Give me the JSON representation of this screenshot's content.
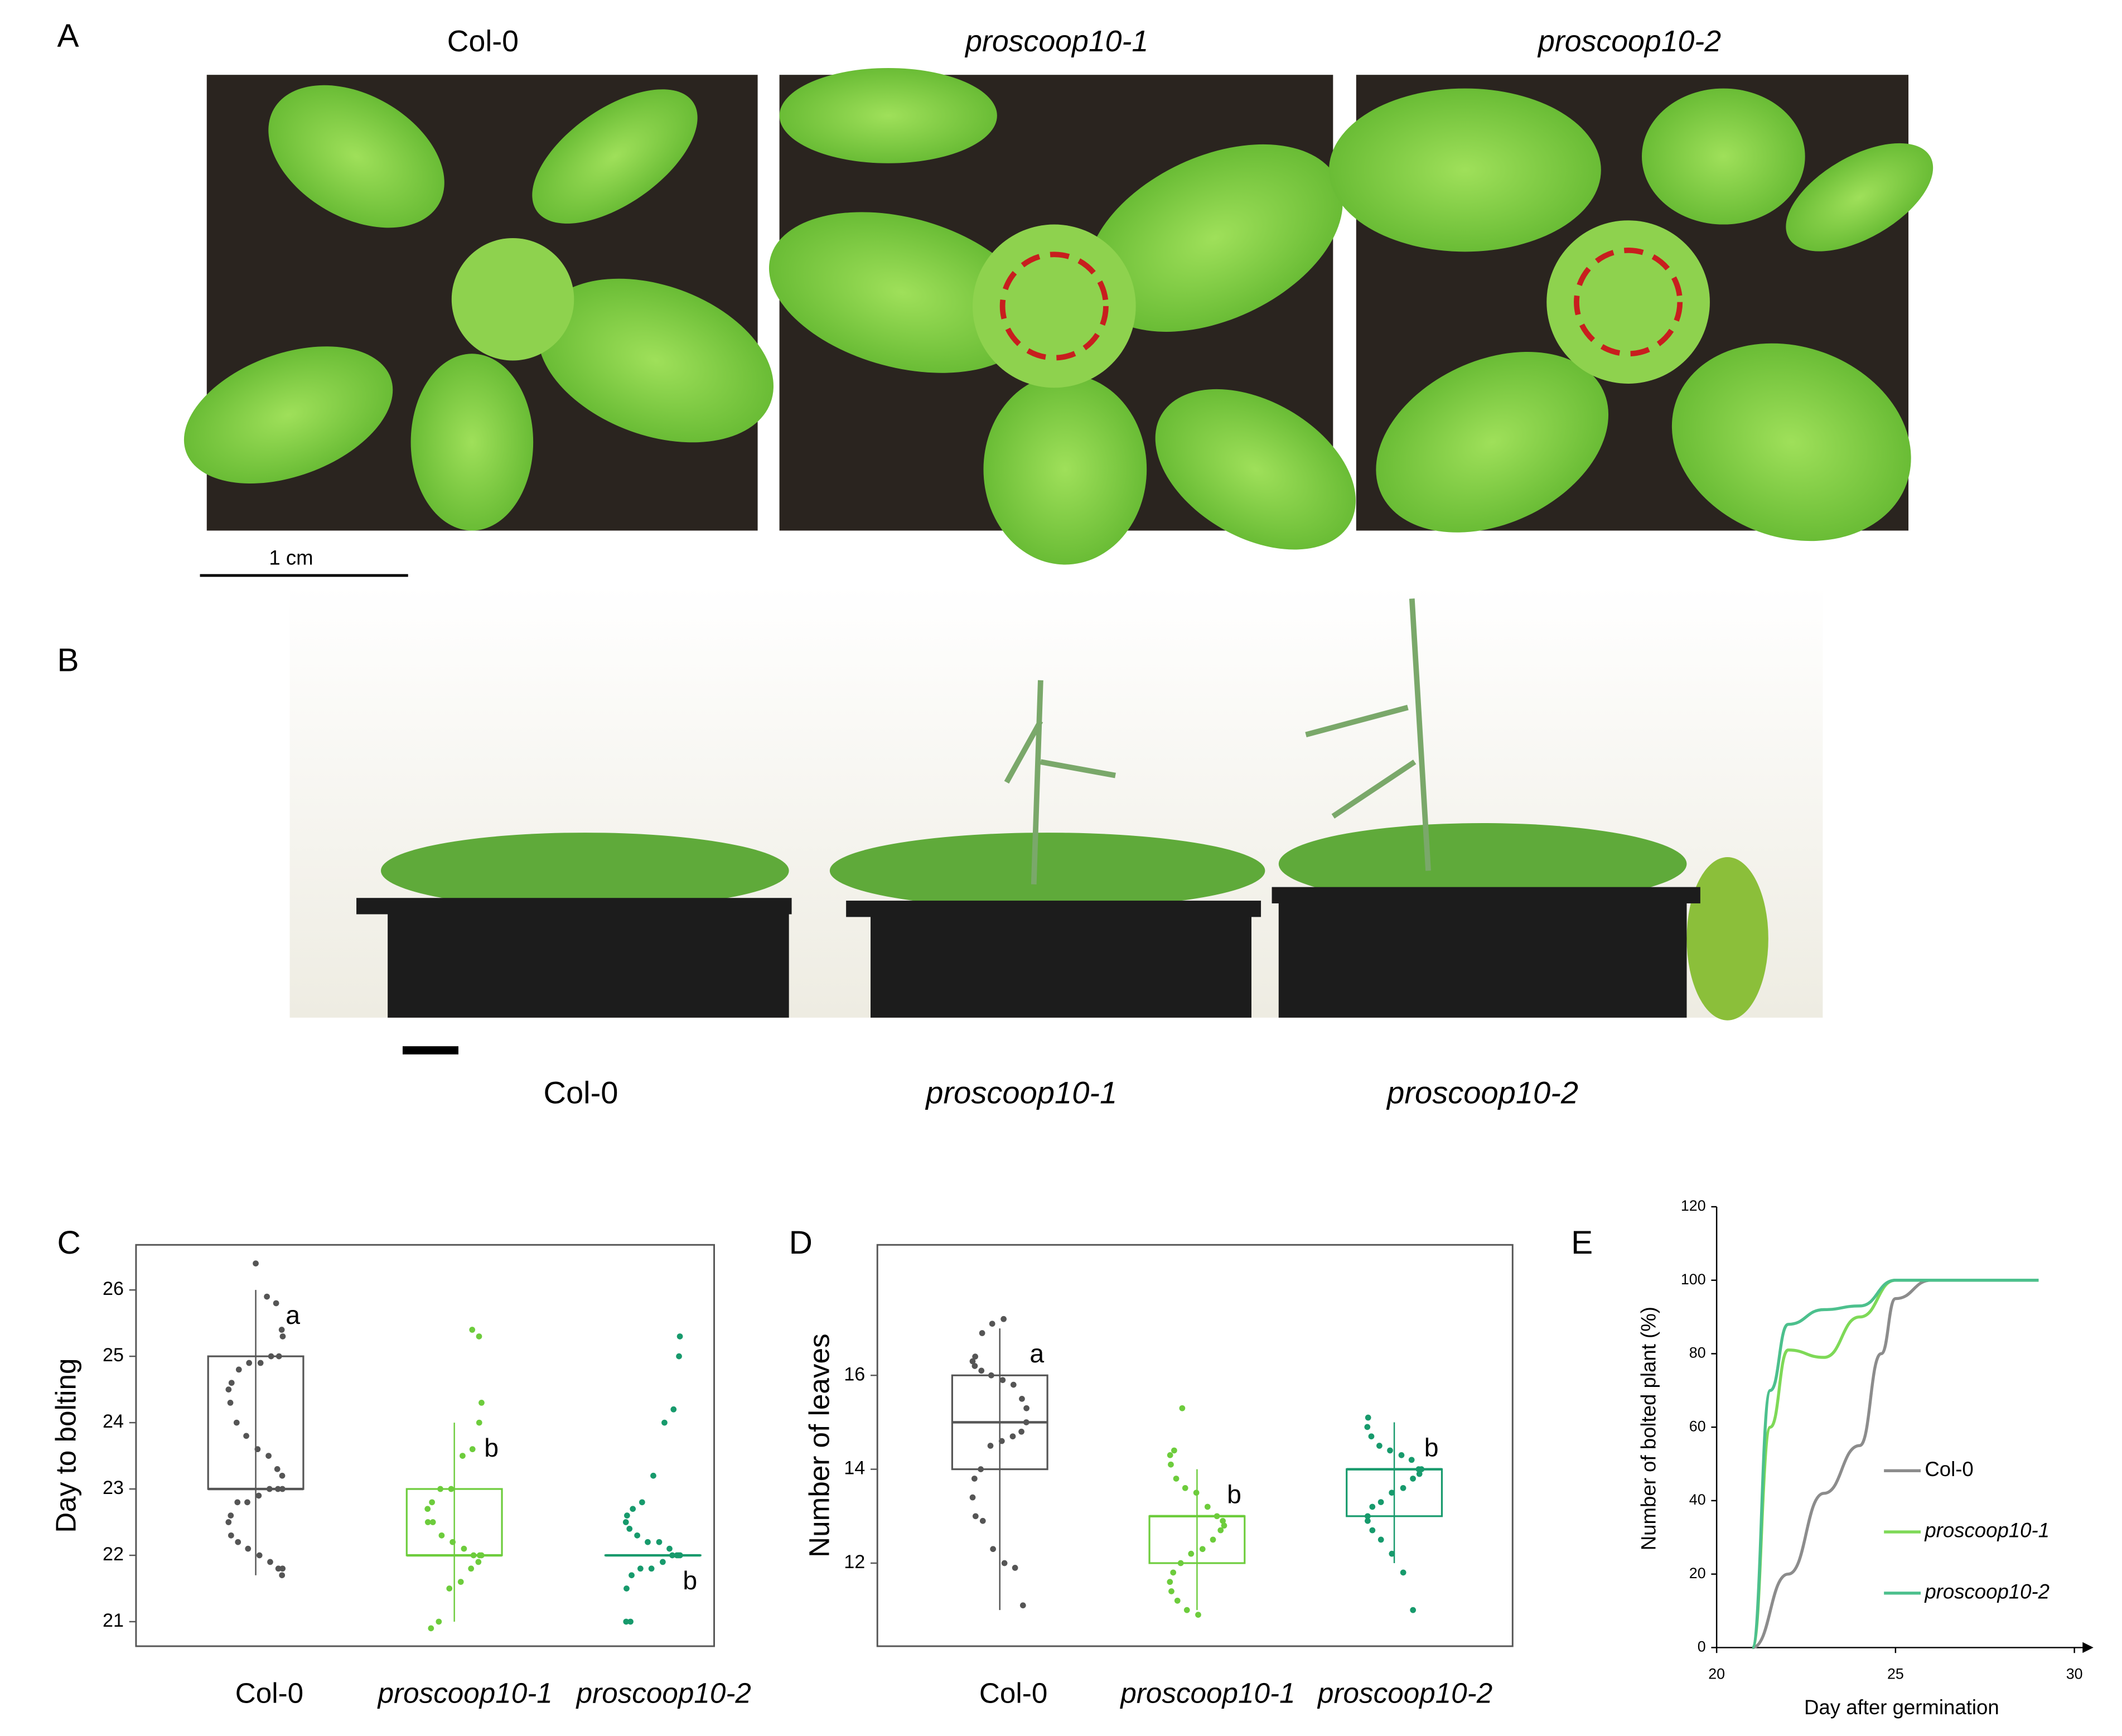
{
  "figure": {
    "panel_labels": [
      "A",
      "B",
      "C",
      "D",
      "E"
    ],
    "panel_a": {
      "titles": [
        "Col-0",
        "proscoop10-1",
        "proscoop10-2"
      ],
      "scale_bar": "1 cm"
    },
    "panel_b": {
      "labels": [
        "Col-0",
        "proscoop10-1",
        "proscoop10-2"
      ]
    }
  },
  "chart_data": [
    {
      "type": "box",
      "y_label": "Day to bolting",
      "categories": [
        "Col-0",
        "proscoop10-1",
        "proscoop10-2"
      ],
      "ylim": [
        20.63,
        26.68
      ],
      "yticks": [
        21,
        22,
        23,
        24,
        25,
        26
      ],
      "boxes": [
        {
          "color": "#555555",
          "letter": "a",
          "min": 21.7,
          "q1": 23,
          "median": 23,
          "q3": 25,
          "max": 26,
          "points": [
            26.4,
            25.9,
            25.8,
            25.4,
            25.3,
            25.0,
            25.0,
            24.9,
            24.9,
            24.8,
            24.6,
            24.5,
            24.3,
            24.0,
            23.8,
            23.6,
            23.5,
            23.3,
            23.2,
            23.0,
            23.0,
            23.0,
            22.9,
            22.8,
            22.8,
            22.6,
            22.5,
            22.3,
            22.2,
            22.1,
            22.0,
            21.9,
            21.8,
            21.8,
            21.7
          ]
        },
        {
          "color": "#6dcc3c",
          "letter": "b",
          "min": 21,
          "q1": 22,
          "median": 22,
          "q3": 23,
          "max": 24,
          "points": [
            25.4,
            25.3,
            24.3,
            24.0,
            23.6,
            23.5,
            23.0,
            23.0,
            22.8,
            22.7,
            22.5,
            22.5,
            22.3,
            22.2,
            22.1,
            22.0,
            22.0,
            22.0,
            21.9,
            21.8,
            21.6,
            21.5,
            21.0,
            20.9
          ]
        },
        {
          "color": "#179a6c",
          "letter": "b",
          "min": 22,
          "q1": 22,
          "median": 22,
          "q3": 22,
          "max": 22,
          "points": [
            25.3,
            25.0,
            24.2,
            24.0,
            23.2,
            22.8,
            22.7,
            22.6,
            22.5,
            22.4,
            22.3,
            22.2,
            22.2,
            22.1,
            22.0,
            22.0,
            22.0,
            22.0,
            21.9,
            21.8,
            21.8,
            21.7,
            21.5,
            21.0,
            21.0
          ]
        }
      ]
    },
    {
      "type": "box",
      "y_label": "Number of leaves",
      "categories": [
        "Col-0",
        "proscoop10-1",
        "proscoop10-2"
      ],
      "ylim": [
        10.23,
        18.78
      ],
      "yticks": [
        12,
        14,
        16
      ],
      "boxes": [
        {
          "color": "#555555",
          "letter": "a",
          "min": 11,
          "q1": 14,
          "median": 15,
          "q3": 16,
          "max": 17,
          "points": [
            17.2,
            17.1,
            16.9,
            16.4,
            16.3,
            16.2,
            16.1,
            16.0,
            15.9,
            15.8,
            15.5,
            15.3,
            15.0,
            14.8,
            14.7,
            14.6,
            14.5,
            14.0,
            13.8,
            13.4,
            13.0,
            12.9,
            12.3,
            12.0,
            11.9,
            11.1
          ]
        },
        {
          "color": "#6dcc3c",
          "letter": "b",
          "min": 11,
          "q1": 12,
          "median": 13,
          "q3": 13,
          "max": 14,
          "points": [
            15.3,
            14.4,
            14.3,
            14.1,
            13.8,
            13.6,
            13.5,
            13.2,
            13.0,
            12.9,
            12.8,
            12.7,
            12.5,
            12.3,
            12.2,
            12.0,
            11.8,
            11.6,
            11.4,
            11.2,
            11.0,
            10.9
          ]
        },
        {
          "color": "#179a6c",
          "letter": "b",
          "min": 12,
          "q1": 13,
          "median": 14,
          "q3": 14,
          "max": 15,
          "points": [
            15.1,
            14.9,
            14.7,
            14.5,
            14.4,
            14.3,
            14.2,
            14.0,
            14.0,
            13.9,
            13.8,
            13.6,
            13.5,
            13.3,
            13.2,
            13.0,
            12.9,
            12.7,
            12.5,
            12.2,
            11.8,
            11.0
          ]
        }
      ]
    },
    {
      "type": "line",
      "x_label": "Day after germination",
      "y_label": "Number of bolted plant (%)",
      "xlim": [
        20,
        30
      ],
      "xticks": [
        20,
        25,
        30
      ],
      "ylim": [
        0,
        120
      ],
      "yticks": [
        0,
        20,
        40,
        60,
        80,
        100,
        120
      ],
      "series": [
        {
          "name": "Col-0",
          "color": "#8c8c8c",
          "x": [
            21,
            22,
            23,
            24,
            24.6,
            25,
            26,
            29
          ],
          "values": [
            0,
            20,
            42,
            55,
            80,
            95,
            100,
            100
          ]
        },
        {
          "name": "proscoop10-1",
          "color": "#7ed957",
          "x": [
            21,
            21.5,
            22,
            23,
            24,
            25,
            26,
            29
          ],
          "values": [
            0,
            60,
            81,
            79,
            90,
            100,
            100,
            100
          ]
        },
        {
          "name": "proscoop10-2",
          "color": "#4cc08d",
          "x": [
            21,
            21.5,
            22,
            23,
            24,
            25,
            26,
            29
          ],
          "values": [
            0,
            70,
            88,
            92,
            93,
            100,
            100,
            100
          ]
        }
      ]
    }
  ]
}
